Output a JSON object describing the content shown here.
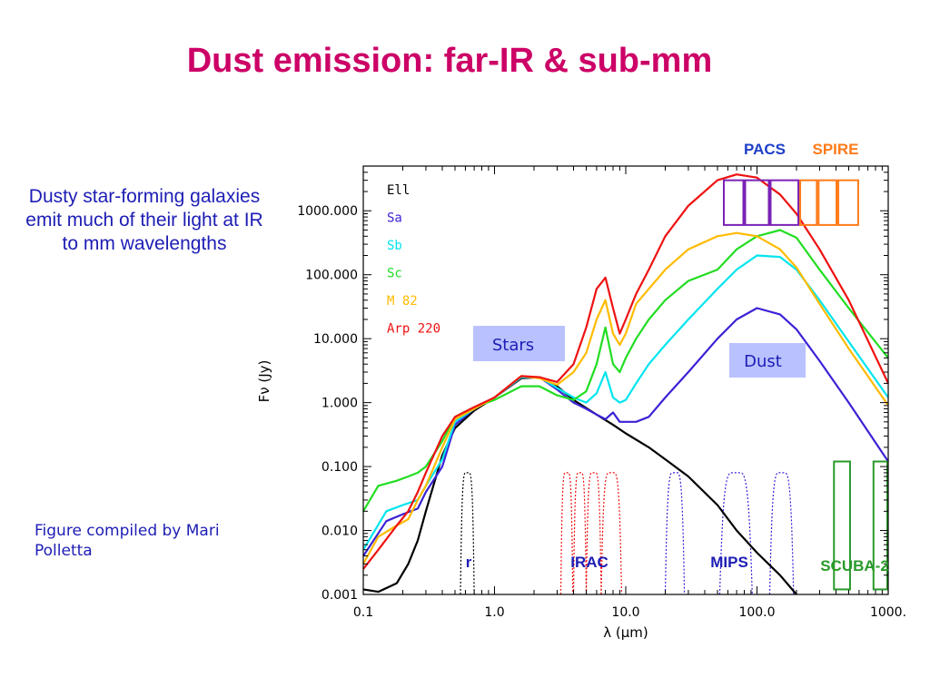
{
  "title": "Dust emission: far-IR & sub-mm",
  "side_text": "Dusty star-forming galaxies emit much of their light at IR to mm wavelengths",
  "credit": "Figure compiled by Mari Polletta",
  "chart_data": {
    "type": "line",
    "x_scale": "log",
    "y_scale": "log",
    "xlabel": "λ (μm)",
    "ylabel": "Fν (Jy)",
    "xlim": [
      0.1,
      1000
    ],
    "ylim": [
      0.001,
      5000
    ],
    "x_ticks": [
      {
        "v": 0.1,
        "label": "0.1"
      },
      {
        "v": 1,
        "label": "1.0"
      },
      {
        "v": 10,
        "label": "10.0"
      },
      {
        "v": 100,
        "label": "100.0"
      },
      {
        "v": 1000,
        "label": "1000."
      }
    ],
    "y_ticks": [
      {
        "v": 0.001,
        "label": "0.001"
      },
      {
        "v": 0.01,
        "label": "0.010"
      },
      {
        "v": 0.1,
        "label": "0.100"
      },
      {
        "v": 1,
        "label": "1.000"
      },
      {
        "v": 10,
        "label": "10.000"
      },
      {
        "v": 100,
        "label": "100.000"
      },
      {
        "v": 1000,
        "label": "1000.000"
      }
    ],
    "series": [
      {
        "name": "Ell",
        "color": "#000000",
        "points": [
          [
            0.1,
            0.0012
          ],
          [
            0.13,
            0.0011
          ],
          [
            0.18,
            0.0015
          ],
          [
            0.22,
            0.003
          ],
          [
            0.26,
            0.007
          ],
          [
            0.3,
            0.02
          ],
          [
            0.4,
            0.15
          ],
          [
            0.5,
            0.4
          ],
          [
            0.7,
            0.75
          ],
          [
            1,
            1.2
          ],
          [
            1.6,
            2.4
          ],
          [
            2.2,
            2.5
          ],
          [
            3,
            1.8
          ],
          [
            4,
            1.1
          ],
          [
            6,
            0.65
          ],
          [
            8,
            0.45
          ],
          [
            10,
            0.33
          ],
          [
            15,
            0.2
          ],
          [
            20,
            0.13
          ],
          [
            30,
            0.07
          ],
          [
            50,
            0.025
          ],
          [
            70,
            0.01
          ],
          [
            100,
            0.0045
          ],
          [
            150,
            0.002
          ],
          [
            200,
            0.001
          ]
        ]
      },
      {
        "name": "Sa",
        "color": "#3b22d6",
        "points": [
          [
            0.1,
            0.004
          ],
          [
            0.15,
            0.014
          ],
          [
            0.2,
            0.018
          ],
          [
            0.26,
            0.022
          ],
          [
            0.3,
            0.04
          ],
          [
            0.4,
            0.1
          ],
          [
            0.5,
            0.45
          ],
          [
            0.7,
            0.8
          ],
          [
            1,
            1.2
          ],
          [
            1.6,
            2.5
          ],
          [
            2.2,
            2.5
          ],
          [
            3,
            1.6
          ],
          [
            4,
            1.0
          ],
          [
            5,
            0.8
          ],
          [
            6,
            0.65
          ],
          [
            7,
            0.55
          ],
          [
            8,
            0.7
          ],
          [
            9,
            0.5
          ],
          [
            10,
            0.5
          ],
          [
            12,
            0.5
          ],
          [
            15,
            0.6
          ],
          [
            20,
            1.2
          ],
          [
            30,
            3
          ],
          [
            50,
            10
          ],
          [
            70,
            20
          ],
          [
            100,
            30
          ],
          [
            150,
            24
          ],
          [
            200,
            14
          ],
          [
            300,
            4.5
          ],
          [
            500,
            1.0
          ],
          [
            1000,
            0.12
          ]
        ]
      },
      {
        "name": "Sb",
        "color": "#00e5ee",
        "points": [
          [
            0.1,
            0.005
          ],
          [
            0.15,
            0.02
          ],
          [
            0.2,
            0.025
          ],
          [
            0.26,
            0.03
          ],
          [
            0.3,
            0.05
          ],
          [
            0.4,
            0.13
          ],
          [
            0.5,
            0.5
          ],
          [
            0.7,
            0.8
          ],
          [
            1,
            1.2
          ],
          [
            1.6,
            2.5
          ],
          [
            2.2,
            2.5
          ],
          [
            3,
            1.7
          ],
          [
            4,
            1.2
          ],
          [
            5,
            1.0
          ],
          [
            6,
            1.4
          ],
          [
            7,
            3
          ],
          [
            8,
            1.2
          ],
          [
            9,
            1.0
          ],
          [
            10,
            1.1
          ],
          [
            12,
            2
          ],
          [
            15,
            4
          ],
          [
            20,
            8
          ],
          [
            30,
            20
          ],
          [
            50,
            60
          ],
          [
            70,
            120
          ],
          [
            100,
            200
          ],
          [
            150,
            190
          ],
          [
            200,
            120
          ],
          [
            300,
            40
          ],
          [
            500,
            9
          ],
          [
            1000,
            1.2
          ]
        ]
      },
      {
        "name": "Sc",
        "color": "#22dd22",
        "points": [
          [
            0.1,
            0.02
          ],
          [
            0.13,
            0.05
          ],
          [
            0.18,
            0.06
          ],
          [
            0.22,
            0.07
          ],
          [
            0.26,
            0.08
          ],
          [
            0.3,
            0.1
          ],
          [
            0.4,
            0.25
          ],
          [
            0.5,
            0.6
          ],
          [
            0.7,
            0.85
          ],
          [
            1,
            1.1
          ],
          [
            1.6,
            1.8
          ],
          [
            2.2,
            1.8
          ],
          [
            3,
            1.3
          ],
          [
            4,
            1.1
          ],
          [
            5,
            1.5
          ],
          [
            6,
            4
          ],
          [
            7,
            15
          ],
          [
            8,
            4
          ],
          [
            9,
            3
          ],
          [
            10,
            5
          ],
          [
            12,
            10
          ],
          [
            15,
            20
          ],
          [
            20,
            40
          ],
          [
            30,
            80
          ],
          [
            50,
            120
          ],
          [
            70,
            250
          ],
          [
            100,
            400
          ],
          [
            150,
            500
          ],
          [
            200,
            380
          ],
          [
            300,
            120
          ],
          [
            500,
            30
          ],
          [
            1000,
            5
          ]
        ]
      },
      {
        "name": "M 82",
        "color": "#ffbb00",
        "points": [
          [
            0.1,
            0.003
          ],
          [
            0.13,
            0.008
          ],
          [
            0.18,
            0.012
          ],
          [
            0.22,
            0.015
          ],
          [
            0.26,
            0.03
          ],
          [
            0.3,
            0.05
          ],
          [
            0.4,
            0.2
          ],
          [
            0.5,
            0.55
          ],
          [
            0.7,
            0.8
          ],
          [
            1,
            1.2
          ],
          [
            1.6,
            2.6
          ],
          [
            2.2,
            2.4
          ],
          [
            3,
            1.9
          ],
          [
            4,
            3
          ],
          [
            5,
            6
          ],
          [
            6,
            20
          ],
          [
            7,
            40
          ],
          [
            8,
            12
          ],
          [
            9,
            8
          ],
          [
            10,
            12
          ],
          [
            12,
            35
          ],
          [
            15,
            60
          ],
          [
            20,
            120
          ],
          [
            30,
            250
          ],
          [
            50,
            400
          ],
          [
            70,
            450
          ],
          [
            100,
            400
          ],
          [
            150,
            250
          ],
          [
            200,
            130
          ],
          [
            300,
            35
          ],
          [
            500,
            7
          ],
          [
            1000,
            0.9
          ]
        ]
      },
      {
        "name": "Arp 220",
        "color": "#ee1111",
        "points": [
          [
            0.1,
            0.0025
          ],
          [
            0.13,
            0.005
          ],
          [
            0.18,
            0.012
          ],
          [
            0.22,
            0.02
          ],
          [
            0.26,
            0.04
          ],
          [
            0.3,
            0.08
          ],
          [
            0.4,
            0.3
          ],
          [
            0.5,
            0.6
          ],
          [
            0.7,
            0.85
          ],
          [
            1,
            1.2
          ],
          [
            1.6,
            2.6
          ],
          [
            2.2,
            2.5
          ],
          [
            3,
            2.1
          ],
          [
            4,
            4
          ],
          [
            5,
            15
          ],
          [
            6,
            60
          ],
          [
            7,
            90
          ],
          [
            8,
            30
          ],
          [
            9,
            12
          ],
          [
            10,
            20
          ],
          [
            12,
            50
          ],
          [
            15,
            120
          ],
          [
            20,
            400
          ],
          [
            30,
            1200
          ],
          [
            50,
            3000
          ],
          [
            70,
            3700
          ],
          [
            100,
            3300
          ],
          [
            150,
            1800
          ],
          [
            200,
            900
          ],
          [
            300,
            250
          ],
          [
            500,
            40
          ],
          [
            1000,
            2
          ]
        ]
      }
    ],
    "filter_curves": [
      {
        "name": "r",
        "color": "#000000",
        "lo": 0.55,
        "hi": 0.7,
        "peak": 0.08
      },
      {
        "name": "IRAC",
        "color": "#ee1111",
        "lo": 3.2,
        "hi": 3.95,
        "peak": 0.08
      },
      {
        "name": "IRAC",
        "color": "#ee1111",
        "lo": 4.0,
        "hi": 5.0,
        "peak": 0.08
      },
      {
        "name": "IRAC",
        "color": "#ee1111",
        "lo": 5.0,
        "hi": 6.5,
        "peak": 0.08
      },
      {
        "name": "IRAC",
        "color": "#ee1111",
        "lo": 6.5,
        "hi": 9.3,
        "peak": 0.08
      },
      {
        "name": "MIPS",
        "color": "#3b22d6",
        "lo": 20,
        "hi": 28,
        "peak": 0.08
      },
      {
        "name": "MIPS",
        "color": "#3b22d6",
        "lo": 52,
        "hi": 92,
        "peak": 0.08
      },
      {
        "name": "MIPS",
        "color": "#3b22d6",
        "lo": 125,
        "hi": 190,
        "peak": 0.08
      }
    ],
    "instrument_boxes": [
      {
        "instrument": "PACS",
        "color": "#7a22b5",
        "lo": 55,
        "hi": 80,
        "ymin": 600,
        "ymax": 3000
      },
      {
        "instrument": "PACS",
        "color": "#7a22b5",
        "lo": 80,
        "hi": 125,
        "ymin": 600,
        "ymax": 3000
      },
      {
        "instrument": "PACS",
        "color": "#7a22b5",
        "lo": 125,
        "hi": 210,
        "ymin": 600,
        "ymax": 3000
      },
      {
        "instrument": "SPIRE",
        "color": "#ff7a1a",
        "lo": 210,
        "hi": 290,
        "ymin": 600,
        "ymax": 3000
      },
      {
        "instrument": "SPIRE",
        "color": "#ff7a1a",
        "lo": 290,
        "hi": 410,
        "ymin": 600,
        "ymax": 3000
      },
      {
        "instrument": "SPIRE",
        "color": "#ff7a1a",
        "lo": 410,
        "hi": 600,
        "ymin": 600,
        "ymax": 3000
      },
      {
        "instrument": "SCUBA-2",
        "color": "#2a9a2a",
        "lo": 380,
        "hi": 520,
        "ymin": 0.0012,
        "ymax": 0.12
      },
      {
        "instrument": "SCUBA-2",
        "color": "#2a9a2a",
        "lo": 760,
        "hi": 1000,
        "ymin": 0.0012,
        "ymax": 0.12
      }
    ],
    "labels": {
      "pacs": "PACS",
      "spire": "SPIRE",
      "scuba2": "SCUBA-2",
      "r": "r",
      "irac": "IRAC",
      "mips": "MIPS",
      "stars": "Stars",
      "dust": "Dust"
    },
    "label_colors": {
      "pacs": "#1d3fc8",
      "spire": "#ff7a1a",
      "scuba2": "#2a9a2a",
      "inst": "#1d1db5",
      "box_fill": "#b9c2ff"
    }
  }
}
